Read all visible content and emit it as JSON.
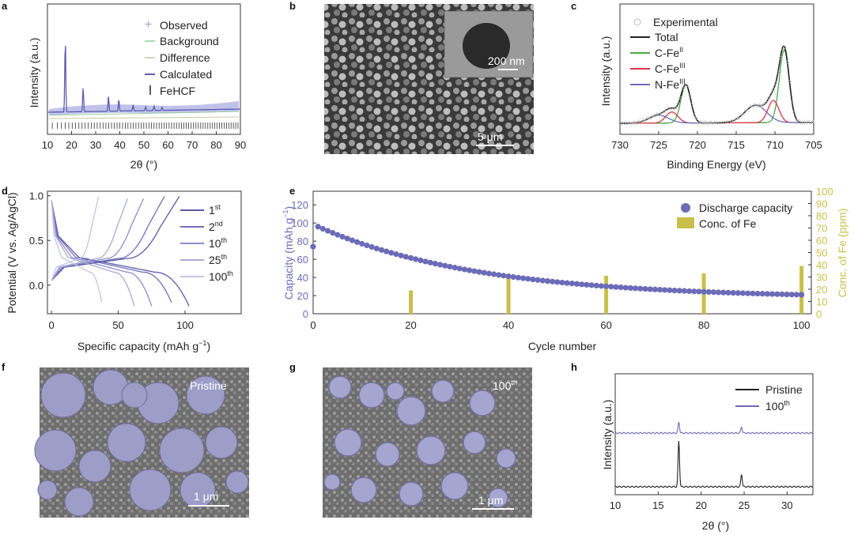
{
  "panel_letters": [
    "a",
    "b",
    "c",
    "d",
    "e",
    "f",
    "g",
    "h"
  ],
  "colors": {
    "purple": "#6b6bb8",
    "gold": "#c8c04a",
    "green": "#4aa84a",
    "red": "#e0324a",
    "black": "#222222"
  },
  "panel_a": {
    "ylabel": "Intensity (a.u.)",
    "xlabel": "2θ (°)",
    "legend": [
      "Observed",
      "Background",
      "Difference",
      "Calculated",
      "FeHCF"
    ]
  },
  "panel_b": {
    "scale_large": "5 μm",
    "scale_inset": "200 nm"
  },
  "panel_c": {
    "ylabel": "Intensity (a.u.)",
    "xlabel": "Binding Energy (eV)",
    "legend": [
      "Experimental",
      "Total",
      "C-Fe",
      "C-Fe",
      "N-Fe"
    ],
    "legend_sup": [
      "",
      "",
      "II",
      "III",
      "III"
    ]
  },
  "panel_d": {
    "ylabel": "Potential (V vs. Ag/AgCl)",
    "xlabel": "Specific capacity (mAh g",
    "xlabel_sup": "−1",
    "xlabel_close": ")",
    "legend": [
      "1",
      "2",
      "10",
      "25",
      "100"
    ],
    "legend_sup": [
      "st",
      "nd",
      "th",
      "th",
      "th"
    ]
  },
  "panel_e": {
    "ylabel": "Capacity (mAh g",
    "ylabel_sup": "−1",
    "ylabel_close": ")",
    "y2label": "Conc. of Fe (ppm)",
    "xlabel": "Cycle number",
    "legend": [
      "Discharge capacity",
      "Conc. of Fe"
    ]
  },
  "panel_f": {
    "label": "Pristine",
    "scale": "1 μm"
  },
  "panel_g": {
    "label": "100",
    "label_sup": "th",
    "scale": "1 μm"
  },
  "panel_h": {
    "ylabel": "Intensity (a.u.)",
    "xlabel": "2θ (°)",
    "legend": [
      "Pristine",
      "100"
    ],
    "legend_sup": [
      "",
      "th"
    ]
  },
  "chart_data": [
    {
      "panel": "a",
      "type": "line",
      "xlabel": "2θ (°)",
      "ylabel": "Intensity (a.u.)",
      "xlim": [
        10,
        90
      ],
      "xticks": [
        10,
        20,
        30,
        40,
        50,
        60,
        70,
        80,
        90
      ],
      "series": [
        {
          "name": "Observed",
          "x": [
            17.4,
            24.8,
            35.3,
            39.6,
            45.5,
            50.7,
            54.2,
            57.5
          ],
          "y": [
            10,
            3.2,
            2.0,
            1.6,
            0.8,
            0.5,
            0.6,
            0.4
          ]
        },
        {
          "name": "Calculated",
          "x": [
            17.4,
            24.8,
            35.3,
            39.6,
            45.5,
            50.7,
            54.2,
            57.5
          ],
          "y": [
            10,
            3.2,
            2.0,
            1.6,
            0.8,
            0.5,
            0.6,
            0.4
          ]
        }
      ]
    },
    {
      "panel": "c",
      "type": "line",
      "xlabel": "Binding Energy (eV)",
      "ylabel": "Intensity (a.u.)",
      "xlim": [
        730,
        705
      ],
      "xticks": [
        730,
        725,
        720,
        715,
        710,
        705
      ],
      "peaks": [
        {
          "name": "C-FeII",
          "x": [
            708.8,
            721.5
          ]
        },
        {
          "name": "C-FeIII",
          "x": [
            710.2,
            723.3
          ]
        },
        {
          "name": "N-FeIII",
          "x": [
            712.5,
            725.0
          ]
        }
      ]
    },
    {
      "panel": "d",
      "type": "line",
      "xlabel": "Specific capacity (mAh g−1)",
      "ylabel": "Potential (V vs. Ag/AgCl)",
      "xlim": [
        -3,
        142
      ],
      "ylim": [
        -0.32,
        1.05
      ],
      "xticks": [
        0,
        50,
        100
      ],
      "yticks": [
        0.0,
        0.5,
        1.0
      ],
      "series": [
        {
          "name": "1st",
          "discharge_capacity": 103
        },
        {
          "name": "2nd",
          "discharge_capacity": 91
        },
        {
          "name": "10th",
          "discharge_capacity": 75
        },
        {
          "name": "25th",
          "discharge_capacity": 62
        },
        {
          "name": "100th",
          "discharge_capacity": 38
        }
      ]
    },
    {
      "panel": "e",
      "type": "scatter",
      "xlabel": "Cycle number",
      "ylabel": "Capacity (mAh g−1)",
      "y2label": "Conc. of Fe (ppm)",
      "xlim": [
        0,
        102
      ],
      "ylim": [
        0,
        135
      ],
      "y2lim": [
        0,
        100
      ],
      "xticks": [
        0,
        20,
        40,
        60,
        80,
        100
      ],
      "yticks": [
        0,
        20,
        40,
        60,
        80,
        100,
        120
      ],
      "y2ticks": [
        0,
        10,
        20,
        30,
        40,
        50,
        60,
        70,
        80,
        90,
        100
      ],
      "series": [
        {
          "name": "Discharge capacity",
          "first_cycle": 74,
          "start": 96,
          "end": 17
        },
        {
          "name": "Conc. of Fe",
          "x": [
            20,
            40,
            60,
            80,
            100
          ],
          "y": [
            19,
            29,
            31,
            33,
            39
          ]
        }
      ]
    },
    {
      "panel": "h",
      "type": "line",
      "xlabel": "2θ (°)",
      "ylabel": "Intensity (a.u.)",
      "xlim": [
        10,
        33
      ],
      "xticks": [
        10,
        15,
        20,
        25,
        30
      ],
      "series": [
        {
          "name": "Pristine",
          "peaks": [
            17.4,
            24.7
          ]
        },
        {
          "name": "100th",
          "peaks": [
            17.4,
            24.7
          ]
        }
      ]
    }
  ]
}
